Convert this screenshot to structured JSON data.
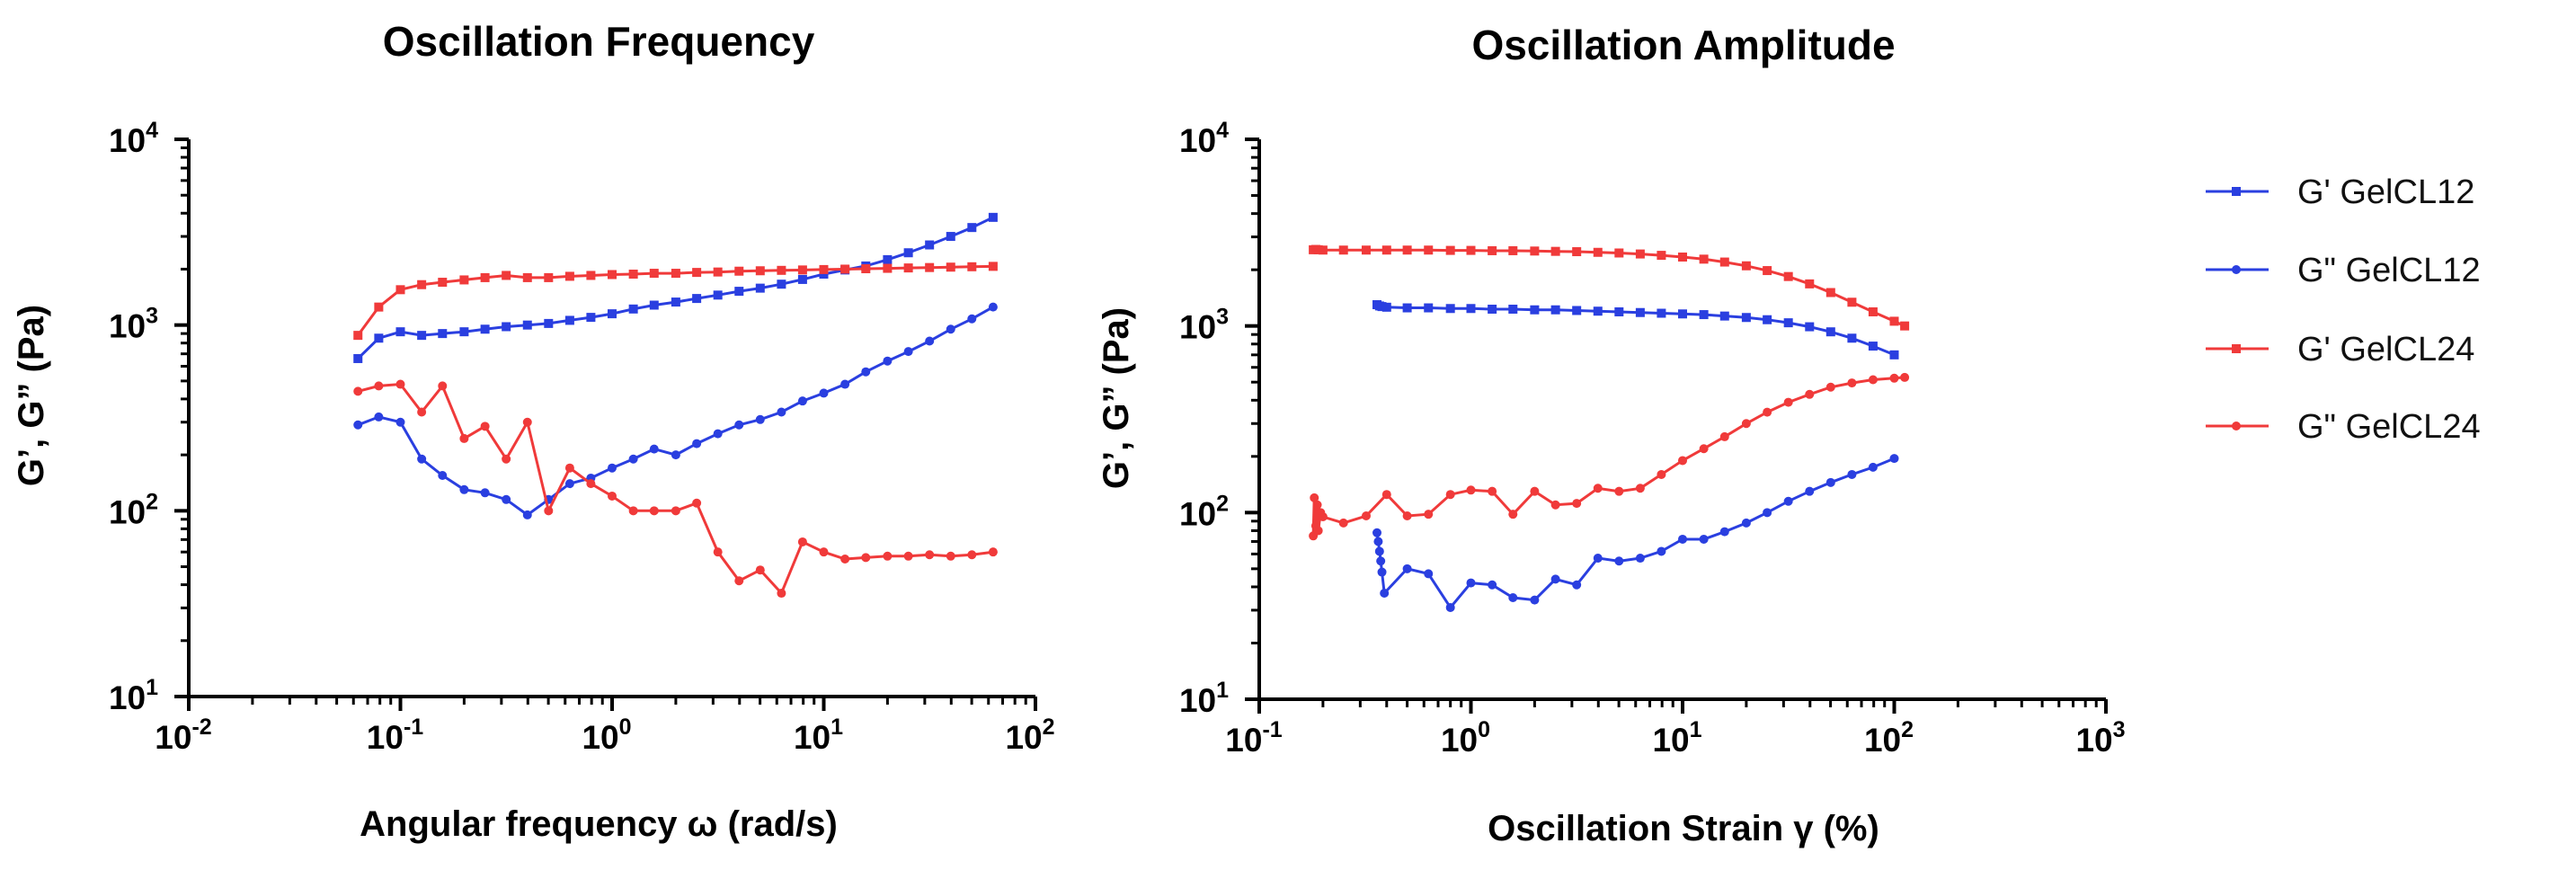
{
  "colors": {
    "gelcl12": "#2a3fe0",
    "gelcl24": "#f03a3a",
    "axis": "#000000"
  },
  "legend": [
    {
      "label": "G' GelCL12",
      "color": "#2a3fe0",
      "marker": "square"
    },
    {
      "label": "G\" GelCL12",
      "color": "#2a3fe0",
      "marker": "circle"
    },
    {
      "label": "G' GelCL24",
      "color": "#f03a3a",
      "marker": "square"
    },
    {
      "label": "G\" GelCL24",
      "color": "#f03a3a",
      "marker": "circle"
    }
  ],
  "chart_data": [
    {
      "type": "line",
      "title": "Oscillation Frequency",
      "xlabel": "Angular frequency ω (rad/s)",
      "ylabel": "G’, G” (Pa)",
      "xscale": "log",
      "yscale": "log",
      "xlim": [
        0.01,
        100
      ],
      "ylim": [
        10,
        10000
      ],
      "xticks": [
        {
          "base": "10",
          "exp": "-2"
        },
        {
          "base": "10",
          "exp": "-1"
        },
        {
          "base": "10",
          "exp": "0"
        },
        {
          "base": "10",
          "exp": "1"
        },
        {
          "base": "10",
          "exp": "2"
        }
      ],
      "yticks": [
        {
          "base": "10",
          "exp": "1"
        },
        {
          "base": "10",
          "exp": "2"
        },
        {
          "base": "10",
          "exp": "3"
        },
        {
          "base": "10",
          "exp": "4"
        }
      ],
      "series": [
        {
          "name": "G' GelCL12",
          "color": "#2a3fe0",
          "marker": "square",
          "x": [
            0.063,
            0.079,
            0.1,
            0.126,
            0.158,
            0.2,
            0.251,
            0.316,
            0.398,
            0.501,
            0.631,
            0.794,
            1.0,
            1.26,
            1.58,
            2.0,
            2.51,
            3.16,
            3.98,
            5.01,
            6.31,
            7.94,
            10.0,
            12.6,
            15.8,
            20.0,
            25.1,
            31.6,
            39.8,
            50.1,
            63.1
          ],
          "y": [
            660,
            850,
            920,
            880,
            900,
            920,
            950,
            980,
            1000,
            1020,
            1060,
            1100,
            1150,
            1220,
            1280,
            1330,
            1390,
            1450,
            1520,
            1580,
            1660,
            1760,
            1880,
            1980,
            2080,
            2250,
            2450,
            2700,
            3000,
            3350,
            3800
          ]
        },
        {
          "name": "G\" GelCL12",
          "color": "#2a3fe0",
          "marker": "circle",
          "x": [
            0.063,
            0.079,
            0.1,
            0.126,
            0.158,
            0.2,
            0.251,
            0.316,
            0.398,
            0.501,
            0.631,
            0.794,
            1.0,
            1.26,
            1.58,
            2.0,
            2.51,
            3.16,
            3.98,
            5.01,
            6.31,
            7.94,
            10.0,
            12.6,
            15.8,
            20.0,
            25.1,
            31.6,
            39.8,
            50.1,
            63.1
          ],
          "y": [
            290,
            320,
            300,
            190,
            155,
            130,
            125,
            115,
            95,
            115,
            140,
            150,
            170,
            190,
            215,
            200,
            230,
            260,
            290,
            310,
            340,
            390,
            430,
            480,
            560,
            640,
            720,
            820,
            950,
            1080,
            1250
          ]
        },
        {
          "name": "G' GelCL24",
          "color": "#f03a3a",
          "marker": "square",
          "x": [
            0.063,
            0.079,
            0.1,
            0.126,
            0.158,
            0.2,
            0.251,
            0.316,
            0.398,
            0.501,
            0.631,
            0.794,
            1.0,
            1.26,
            1.58,
            2.0,
            2.51,
            3.16,
            3.98,
            5.01,
            6.31,
            7.94,
            10.0,
            12.6,
            15.8,
            20.0,
            25.1,
            31.6,
            39.8,
            50.1,
            63.1
          ],
          "y": [
            880,
            1250,
            1550,
            1650,
            1700,
            1750,
            1800,
            1850,
            1800,
            1800,
            1830,
            1850,
            1870,
            1880,
            1900,
            1900,
            1920,
            1930,
            1950,
            1960,
            1970,
            1980,
            1990,
            2000,
            2010,
            2020,
            2030,
            2040,
            2050,
            2060,
            2070
          ]
        },
        {
          "name": "G\" GelCL24",
          "color": "#f03a3a",
          "marker": "circle",
          "x": [
            0.063,
            0.079,
            0.1,
            0.126,
            0.158,
            0.2,
            0.251,
            0.316,
            0.398,
            0.501,
            0.631,
            0.794,
            1.0,
            1.26,
            1.58,
            2.0,
            2.51,
            3.16,
            3.98,
            5.01,
            6.31,
            7.94,
            10.0,
            12.6,
            15.8,
            20.0,
            25.1,
            31.6,
            39.8,
            50.1,
            63.1
          ],
          "y": [
            440,
            470,
            480,
            340,
            470,
            245,
            285,
            190,
            300,
            100,
            170,
            140,
            120,
            100,
            100,
            100,
            110,
            60,
            42,
            48,
            36,
            68,
            60,
            55,
            56,
            57,
            57,
            58,
            57,
            58,
            60
          ]
        }
      ]
    },
    {
      "type": "line",
      "title": "Oscillation Amplitude",
      "xlabel": "Oscillation Strain γ (%)",
      "ylabel": "G’, G” (Pa)",
      "xscale": "log",
      "yscale": "log",
      "xlim": [
        0.1,
        1000
      ],
      "ylim": [
        10,
        10000
      ],
      "xticks": [
        {
          "base": "10",
          "exp": "-1"
        },
        {
          "base": "10",
          "exp": "0"
        },
        {
          "base": "10",
          "exp": "1"
        },
        {
          "base": "10",
          "exp": "2"
        },
        {
          "base": "10",
          "exp": "3"
        }
      ],
      "yticks": [
        {
          "base": "10",
          "exp": "1"
        },
        {
          "base": "10",
          "exp": "2"
        },
        {
          "base": "10",
          "exp": "3"
        },
        {
          "base": "10",
          "exp": "4"
        }
      ],
      "series": [
        {
          "name": "G' GelCL12",
          "color": "#2a3fe0",
          "marker": "square",
          "x": [
            0.36,
            0.37,
            0.38,
            0.4,
            0.5,
            0.63,
            0.8,
            1.0,
            1.26,
            1.58,
            2.0,
            2.51,
            3.16,
            3.98,
            5.01,
            6.31,
            7.94,
            10.0,
            12.6,
            15.8,
            20.0,
            25.1,
            31.6,
            39.8,
            50.1,
            63.1,
            79.4,
            100
          ],
          "y": [
            1300,
            1280,
            1270,
            1260,
            1250,
            1250,
            1240,
            1240,
            1230,
            1230,
            1220,
            1220,
            1210,
            1200,
            1190,
            1180,
            1170,
            1160,
            1150,
            1130,
            1110,
            1080,
            1040,
            990,
            930,
            860,
            780,
            700
          ]
        },
        {
          "name": "G\" GelCL12",
          "color": "#2a3fe0",
          "marker": "circle",
          "x": [
            0.36,
            0.365,
            0.37,
            0.375,
            0.38,
            0.39,
            0.5,
            0.63,
            0.8,
            1.0,
            1.26,
            1.58,
            2.0,
            2.51,
            3.16,
            3.98,
            5.01,
            6.31,
            7.94,
            10.0,
            12.6,
            15.8,
            20.0,
            25.1,
            31.6,
            39.8,
            50.1,
            63.1,
            79.4,
            100
          ],
          "y": [
            78,
            70,
            62,
            55,
            48,
            37,
            50,
            47,
            31,
            42,
            41,
            35,
            34,
            44,
            41,
            57,
            55,
            57,
            62,
            72,
            72,
            79,
            88,
            100,
            115,
            130,
            145,
            160,
            175,
            195
          ]
        },
        {
          "name": "G' GelCL24",
          "color": "#f03a3a",
          "marker": "square",
          "x": [
            0.18,
            0.185,
            0.19,
            0.2,
            0.25,
            0.32,
            0.4,
            0.5,
            0.63,
            0.8,
            1.0,
            1.26,
            1.58,
            2.0,
            2.51,
            3.16,
            3.98,
            5.01,
            6.31,
            7.94,
            10.0,
            12.6,
            15.8,
            20.0,
            25.1,
            31.6,
            39.8,
            50.1,
            63.1,
            79.4,
            100,
            112
          ],
          "y": [
            2560,
            2570,
            2560,
            2550,
            2550,
            2550,
            2550,
            2550,
            2550,
            2540,
            2540,
            2530,
            2530,
            2520,
            2510,
            2500,
            2480,
            2460,
            2430,
            2390,
            2340,
            2280,
            2200,
            2100,
            1980,
            1840,
            1680,
            1510,
            1340,
            1190,
            1060,
            1000
          ]
        },
        {
          "name": "G\" GelCL24",
          "color": "#f03a3a",
          "marker": "circle",
          "x": [
            0.18,
            0.182,
            0.185,
            0.188,
            0.19,
            0.195,
            0.2,
            0.25,
            0.32,
            0.4,
            0.5,
            0.63,
            0.8,
            1.0,
            1.26,
            1.58,
            2.0,
            2.51,
            3.16,
            3.98,
            5.01,
            6.31,
            7.94,
            10.0,
            12.6,
            15.8,
            20.0,
            25.1,
            31.6,
            39.8,
            50.1,
            63.1,
            79.4,
            100,
            112
          ],
          "y": [
            75,
            120,
            85,
            110,
            80,
            100,
            95,
            88,
            96,
            125,
            96,
            98,
            125,
            132,
            130,
            98,
            130,
            110,
            112,
            135,
            130,
            135,
            160,
            190,
            220,
            255,
            300,
            345,
            390,
            430,
            470,
            495,
            515,
            525,
            530
          ]
        }
      ]
    }
  ]
}
